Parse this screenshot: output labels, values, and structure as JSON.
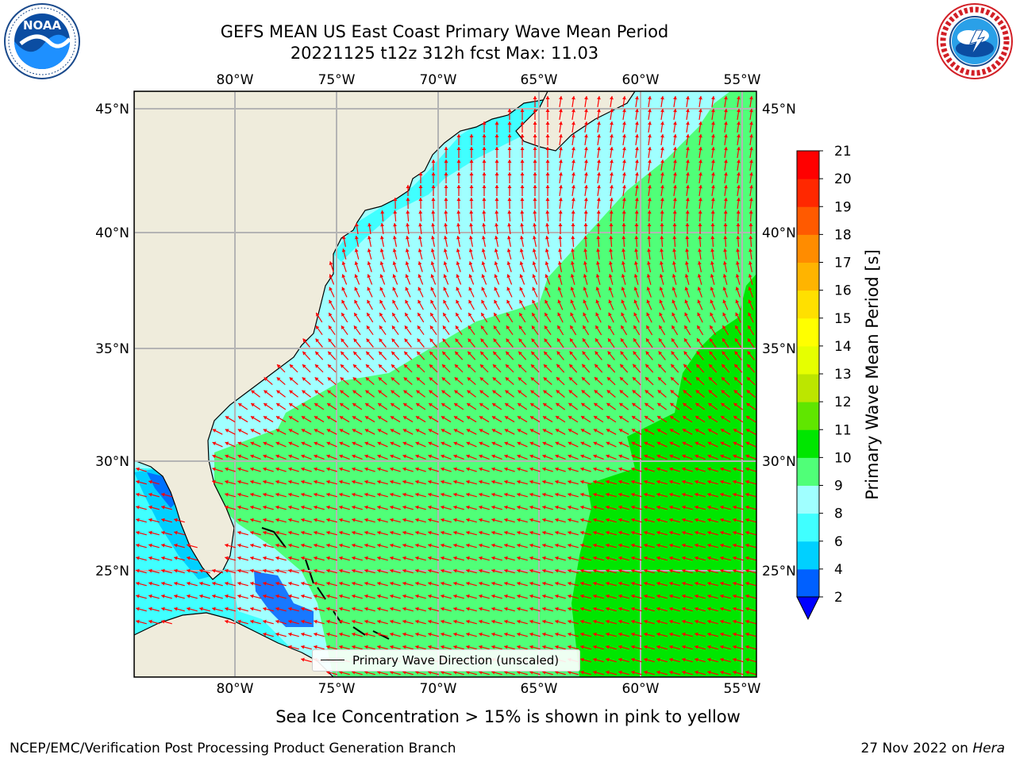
{
  "title": {
    "line1": "GEFS MEAN US East Coast Primary Wave Mean Period",
    "line2": "20221125 t12z 312h fcst   Max: 11.03"
  },
  "logos": {
    "left": "NOAA",
    "left_ring": "NATIONAL OCEANIC AND ATMOSPHERIC ADMINISTRATION · U.S. DEPARTMENT OF COMMERCE",
    "right_ring": "NATIONAL WEATHER SERVICE"
  },
  "map": {
    "lon_ticks": [
      "80°W",
      "75°W",
      "70°W",
      "65°W",
      "60°W",
      "55°W"
    ],
    "lat_ticks": [
      "45°N",
      "40°N",
      "35°N",
      "30°N",
      "25°N"
    ],
    "legend": "Primary Wave Direction (unscaled)",
    "arrow_color": "#ff0000",
    "land_color": "#efecdc"
  },
  "colorbar": {
    "label": "Primary Wave Mean Period [s]",
    "ticks": [
      "2",
      "4",
      "6",
      "8",
      "9",
      "10",
      "11",
      "12",
      "13",
      "14",
      "15",
      "16",
      "17",
      "18",
      "19",
      "20",
      "21"
    ],
    "colors": [
      "#0000ff",
      "#0060ff",
      "#00d0ff",
      "#40ffff",
      "#a0ffff",
      "#50ff78",
      "#00e600",
      "#60e600",
      "#bce600",
      "#e6ff00",
      "#ffff00",
      "#ffe000",
      "#ffb400",
      "#ff8c00",
      "#ff5a00",
      "#ff2800",
      "#ff0000"
    ]
  },
  "footer": {
    "note": "Sea Ice Concentration > 15% is shown in pink to yellow",
    "credit_left": "NCEP/EMC/Verification Post Processing Product Generation Branch",
    "date": "27 Nov 2022 on",
    "machine": "Hera"
  }
}
